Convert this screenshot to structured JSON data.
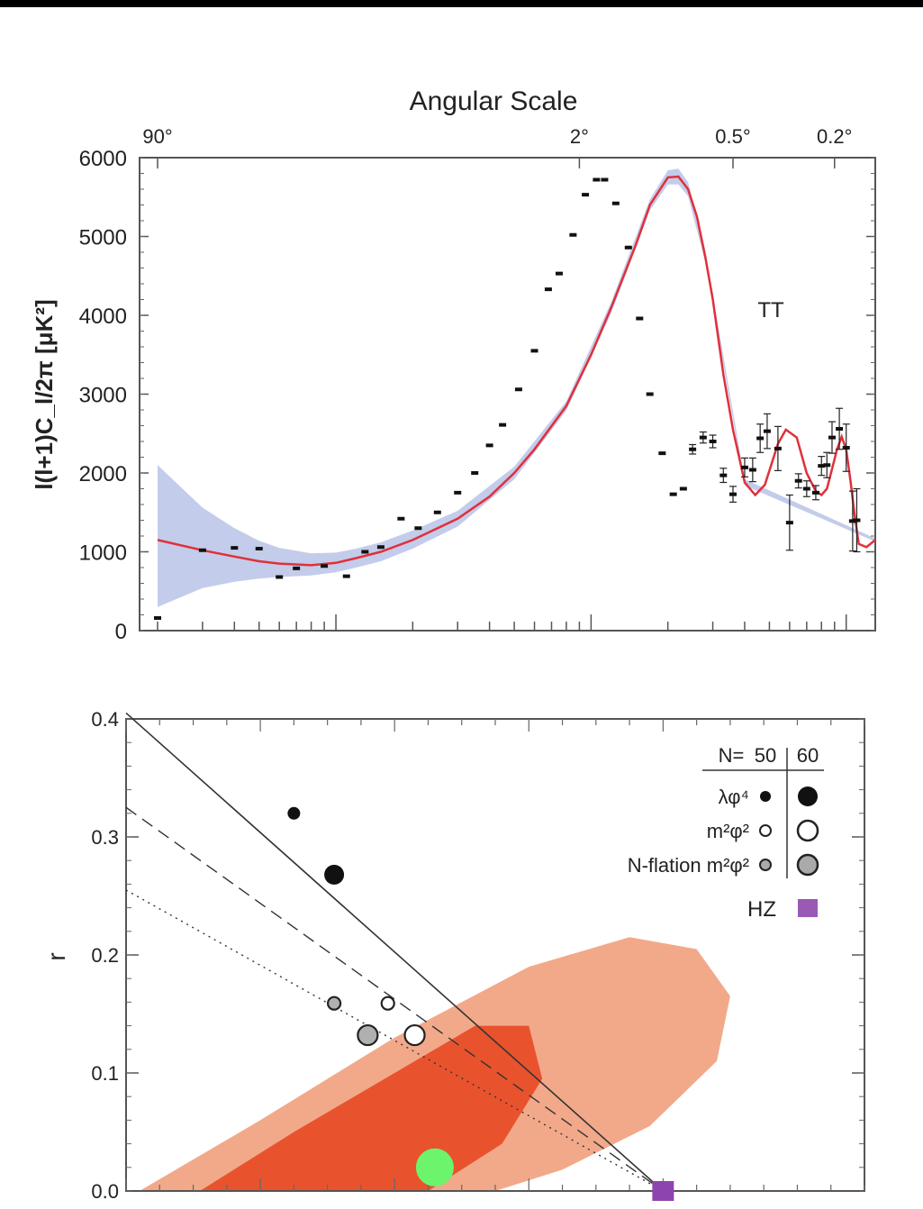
{
  "chart_data": [
    {
      "type": "line",
      "title": "",
      "top_axis_title": "Angular Scale",
      "top_ticks": [
        "90°",
        "2°",
        "0.5°",
        "0.2°"
      ],
      "top_tick_ell": [
        2,
        90,
        360,
        900
      ],
      "xscale": "log",
      "xlim": [
        1.7,
        1300
      ],
      "ylabel": "l(l+1)C_l/2π [μK²]",
      "ylim": [
        0,
        6000
      ],
      "yticks": [
        0,
        1000,
        2000,
        3000,
        4000,
        5000,
        6000
      ],
      "annotation": "TT",
      "band_color": "#b9c3e6",
      "model_color": "#e0303a",
      "model_curve": {
        "name": "",
        "x": [
          2,
          3,
          4,
          5,
          6,
          8,
          10,
          12,
          15,
          20,
          30,
          40,
          50,
          60,
          80,
          100,
          120,
          150,
          170,
          200,
          220,
          240,
          260,
          280,
          300,
          330,
          360,
          400,
          440,
          480,
          520,
          540,
          580,
          640,
          700,
          760,
          800,
          840,
          880,
          920,
          960,
          1000,
          1040,
          1080,
          1120,
          1200,
          1300
        ],
        "y": [
          1150,
          1020,
          940,
          880,
          850,
          830,
          860,
          920,
          1000,
          1150,
          1420,
          1700,
          2000,
          2300,
          2850,
          3500,
          4100,
          4900,
          5400,
          5750,
          5760,
          5600,
          5250,
          4750,
          4200,
          3250,
          2550,
          1880,
          1720,
          1850,
          2200,
          2370,
          2550,
          2450,
          2000,
          1770,
          1720,
          1800,
          2050,
          2300,
          2460,
          2300,
          1900,
          1450,
          1100,
          1060,
          1150
        ]
      },
      "band": {
        "x": [
          2,
          3,
          4,
          5,
          6,
          8,
          10,
          12,
          15,
          20,
          30,
          50,
          80,
          120,
          170,
          200,
          220,
          240,
          280,
          400,
          1300
        ],
        "lower": [
          300,
          540,
          620,
          660,
          680,
          700,
          740,
          800,
          880,
          1040,
          1320,
          1920,
          2790,
          4030,
          5330,
          5660,
          5660,
          5510,
          4680,
          1840,
          1130
        ],
        "upper": [
          2100,
          1560,
          1300,
          1140,
          1050,
          980,
          990,
          1040,
          1120,
          1270,
          1520,
          2080,
          2910,
          4170,
          5470,
          5840,
          5860,
          5690,
          4820,
          1920,
          1170
        ]
      },
      "series": [
        {
          "name": "",
          "x": [
            2,
            3,
            4,
            5,
            6,
            7,
            9,
            11,
            13,
            15,
            18,
            21,
            25,
            30,
            35,
            40,
            45,
            52,
            60,
            68,
            75,
            85,
            95,
            105,
            113,
            125,
            140,
            155,
            170,
            190,
            210,
            230,
            250,
            275,
            300,
            330,
            360,
            400,
            430,
            460,
            490,
            540,
            600,
            650,
            700,
            760,
            800,
            840,
            880,
            940,
            1000,
            1060,
            1100
          ],
          "y": [
            160,
            1020,
            1050,
            1040,
            680,
            790,
            820,
            690,
            1000,
            1060,
            1420,
            1300,
            1500,
            1750,
            2000,
            2350,
            2610,
            3060,
            3550,
            4330,
            4530,
            5020,
            5530,
            5720,
            5720,
            5420,
            4860,
            3960,
            3000,
            2250,
            1730,
            1800,
            2300,
            2450,
            2400,
            1970,
            1730,
            2070,
            2040,
            2440,
            2530,
            2310,
            1370,
            1900,
            1800,
            1750,
            2090,
            2100,
            2450,
            2560,
            2320,
            1390,
            1400
          ],
          "err": [
            30,
            30,
            30,
            30,
            30,
            30,
            30,
            30,
            30,
            30,
            30,
            30,
            30,
            30,
            30,
            30,
            30,
            30,
            30,
            30,
            30,
            30,
            30,
            30,
            30,
            30,
            30,
            30,
            30,
            30,
            30,
            40,
            60,
            70,
            80,
            90,
            100,
            120,
            150,
            180,
            220,
            280,
            350,
            90,
            100,
            90,
            120,
            160,
            200,
            260,
            300,
            380,
            400
          ]
        }
      ]
    },
    {
      "type": "scatter",
      "title": "",
      "xlabel": "",
      "ylabel": "r",
      "xlim": [
        0.92,
        1.03
      ],
      "ylim": [
        0,
        0.4
      ],
      "yticks": [
        0.0,
        0.1,
        0.2,
        0.3,
        0.4
      ],
      "ytick_labels": [
        "0.0",
        "0.1",
        "0.2",
        "0.3",
        "0.4"
      ],
      "legend_header": [
        "N=",
        "50",
        "60"
      ],
      "legend": [
        {
          "label": "λφ⁴",
          "style": "black"
        },
        {
          "label": "m²φ²",
          "style": "white"
        },
        {
          "label": "N-flation m²φ²",
          "style": "gray"
        },
        {
          "label": "HZ",
          "style": "purple-square"
        }
      ],
      "contours": {
        "outer_color": "#f2a98a",
        "inner_color": "#e8532e",
        "outer": {
          "x": [
            0.922,
            0.94,
            0.96,
            0.98,
            0.995,
            1.005,
            1.01,
            1.008,
            0.998,
            0.985,
            0.975,
            0.96,
            0.945,
            0.935,
            0.922
          ],
          "y": [
            0.0,
            0.06,
            0.13,
            0.19,
            0.215,
            0.205,
            0.165,
            0.11,
            0.055,
            0.018,
            0.0,
            0.0,
            0.0,
            0.0,
            0.0
          ]
        },
        "inner": {
          "x": [
            0.931,
            0.945,
            0.96,
            0.972,
            0.98,
            0.982,
            0.976,
            0.965,
            0.95,
            0.94,
            0.931
          ],
          "y": [
            0.0,
            0.05,
            0.1,
            0.14,
            0.14,
            0.095,
            0.04,
            0.0,
            0.0,
            0.0,
            0.0
          ]
        }
      },
      "lines": [
        {
          "name": "",
          "style": "solid",
          "x": [
            0.92,
            1.0
          ],
          "y": [
            0.405,
            0.0
          ]
        },
        {
          "name": "",
          "style": "dashed",
          "x": [
            0.92,
            1.0
          ],
          "y": [
            0.325,
            0.0
          ]
        },
        {
          "name": "",
          "style": "dotted",
          "x": [
            0.92,
            1.0
          ],
          "y": [
            0.255,
            0.0
          ]
        }
      ],
      "points": [
        {
          "x": 0.945,
          "y": 0.32,
          "style": "black",
          "size": "small"
        },
        {
          "x": 0.951,
          "y": 0.268,
          "style": "black",
          "size": "large"
        },
        {
          "x": 0.959,
          "y": 0.159,
          "style": "white",
          "size": "small"
        },
        {
          "x": 0.963,
          "y": 0.132,
          "style": "white",
          "size": "large"
        },
        {
          "x": 0.951,
          "y": 0.159,
          "style": "gray",
          "size": "small"
        },
        {
          "x": 0.956,
          "y": 0.132,
          "style": "gray",
          "size": "large"
        },
        {
          "x": 1.0,
          "y": 0.0,
          "style": "purple-square",
          "size": "small"
        },
        {
          "x": 0.966,
          "y": 0.02,
          "style": "green",
          "size": "large"
        }
      ]
    }
  ]
}
